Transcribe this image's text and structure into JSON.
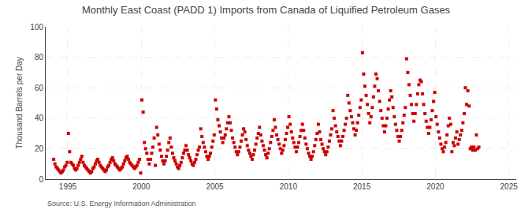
{
  "chart_data": {
    "type": "scatter",
    "title": "Monthly East Coast (PADD 1) Imports from Canada of Liquified Petroleum Gases",
    "ylabel": "Thousand Barrels per Day",
    "annotations": [
      "Source: U.S. Energy Information Administration"
    ],
    "color": "#cc0000",
    "marker": "square",
    "grid": true,
    "xlim": [
      1993.5,
      2025.5
    ],
    "ylim": [
      0,
      100
    ],
    "xticks": [
      1995,
      2000,
      2005,
      2010,
      2015,
      2020,
      2025
    ],
    "yticks": [
      0,
      20,
      40,
      60,
      80,
      100
    ],
    "x": [
      1994.0417,
      1994.125,
      1994.2083,
      1994.2917,
      1994.375,
      1994.4583,
      1994.5417,
      1994.625,
      1994.7083,
      1994.7917,
      1994.875,
      1994.9583,
      1995.0417,
      1995.125,
      1995.2083,
      1995.2917,
      1995.375,
      1995.4583,
      1995.5417,
      1995.625,
      1995.7083,
      1995.7917,
      1995.875,
      1995.9583,
      1996.0417,
      1996.125,
      1996.2083,
      1996.2917,
      1996.375,
      1996.4583,
      1996.5417,
      1996.625,
      1996.7083,
      1996.7917,
      1996.875,
      1996.9583,
      1997.0417,
      1997.125,
      1997.2083,
      1997.2917,
      1997.375,
      1997.4583,
      1997.5417,
      1997.625,
      1997.7083,
      1997.7917,
      1997.875,
      1997.9583,
      1998.0417,
      1998.125,
      1998.2083,
      1998.2917,
      1998.375,
      1998.4583,
      1998.5417,
      1998.625,
      1998.7083,
      1998.7917,
      1998.875,
      1998.9583,
      1999.0417,
      1999.125,
      1999.2083,
      1999.2917,
      1999.375,
      1999.4583,
      1999.5417,
      1999.625,
      1999.7083,
      1999.7917,
      1999.875,
      1999.9583,
      2000.0417,
      2000.125,
      2000.2083,
      2000.2917,
      2000.375,
      2000.4583,
      2000.5417,
      2000.625,
      2000.7083,
      2000.7917,
      2000.875,
      2000.9583,
      2001.0417,
      2001.125,
      2001.2083,
      2001.2917,
      2001.375,
      2001.4583,
      2001.5417,
      2001.625,
      2001.7083,
      2001.7917,
      2001.875,
      2001.9583,
      2002.0417,
      2002.125,
      2002.2083,
      2002.2917,
      2002.375,
      2002.4583,
      2002.5417,
      2002.625,
      2002.7083,
      2002.7917,
      2002.875,
      2002.9583,
      2003.0417,
      2003.125,
      2003.2083,
      2003.2917,
      2003.375,
      2003.4583,
      2003.5417,
      2003.625,
      2003.7083,
      2003.7917,
      2003.875,
      2003.9583,
      2004.0417,
      2004.125,
      2004.2083,
      2004.2917,
      2004.375,
      2004.4583,
      2004.5417,
      2004.625,
      2004.7083,
      2004.7917,
      2004.875,
      2004.9583,
      2005.0417,
      2005.125,
      2005.2083,
      2005.2917,
      2005.375,
      2005.4583,
      2005.5417,
      2005.625,
      2005.7083,
      2005.7917,
      2005.875,
      2005.9583,
      2006.0417,
      2006.125,
      2006.2083,
      2006.2917,
      2006.375,
      2006.4583,
      2006.5417,
      2006.625,
      2006.7083,
      2006.7917,
      2006.875,
      2006.9583,
      2007.0417,
      2007.125,
      2007.2083,
      2007.2917,
      2007.375,
      2007.4583,
      2007.5417,
      2007.625,
      2007.7083,
      2007.7917,
      2007.875,
      2007.9583,
      2008.0417,
      2008.125,
      2008.2083,
      2008.2917,
      2008.375,
      2008.4583,
      2008.5417,
      2008.625,
      2008.7083,
      2008.7917,
      2008.875,
      2008.9583,
      2009.0417,
      2009.125,
      2009.2083,
      2009.2917,
      2009.375,
      2009.4583,
      2009.5417,
      2009.625,
      2009.7083,
      2009.7917,
      2009.875,
      2009.9583,
      2010.0417,
      2010.125,
      2010.2083,
      2010.2917,
      2010.375,
      2010.4583,
      2010.5417,
      2010.625,
      2010.7083,
      2010.7917,
      2010.875,
      2010.9583,
      2011.0417,
      2011.125,
      2011.2083,
      2011.2917,
      2011.375,
      2011.4583,
      2011.5417,
      2011.625,
      2011.7083,
      2011.7917,
      2011.875,
      2011.9583,
      2012.0417,
      2012.125,
      2012.2083,
      2012.2917,
      2012.375,
      2012.4583,
      2012.5417,
      2012.625,
      2012.7083,
      2012.7917,
      2012.875,
      2012.9583,
      2013.0417,
      2013.125,
      2013.2083,
      2013.2917,
      2013.375,
      2013.4583,
      2013.5417,
      2013.625,
      2013.7083,
      2013.7917,
      2013.875,
      2013.9583,
      2014.0417,
      2014.125,
      2014.2083,
      2014.2917,
      2014.375,
      2014.4583,
      2014.5417,
      2014.625,
      2014.7083,
      2014.7917,
      2014.875,
      2014.9583,
      2015.0417,
      2015.125,
      2015.2083,
      2015.2917,
      2015.375,
      2015.4583,
      2015.5417,
      2015.625,
      2015.7083,
      2015.7917,
      2015.875,
      2015.9583,
      2016.0417,
      2016.125,
      2016.2083,
      2016.2917,
      2016.375,
      2016.4583,
      2016.5417,
      2016.625,
      2016.7083,
      2016.7917,
      2016.875,
      2016.9583,
      2017.0417,
      2017.125,
      2017.2083,
      2017.2917,
      2017.375,
      2017.4583,
      2017.5417,
      2017.625,
      2017.7083,
      2017.7917,
      2017.875,
      2017.9583,
      2018.0417,
      2018.125,
      2018.2083,
      2018.2917,
      2018.375,
      2018.4583,
      2018.5417,
      2018.625,
      2018.7083,
      2018.7917,
      2018.875,
      2018.9583,
      2019.0417,
      2019.125,
      2019.2083,
      2019.2917,
      2019.375,
      2019.4583,
      2019.5417,
      2019.625,
      2019.7083,
      2019.7917,
      2019.875,
      2019.9583,
      2020.0417,
      2020.125,
      2020.2083,
      2020.2917,
      2020.375,
      2020.4583,
      2020.5417,
      2020.625,
      2020.7083,
      2020.7917,
      2020.875,
      2020.9583,
      2021.0417,
      2021.125,
      2021.2083,
      2021.2917,
      2021.375,
      2021.4583,
      2021.5417,
      2021.625,
      2021.7083,
      2021.7917,
      2021.875,
      2021.9583,
      2022.0417,
      2022.125,
      2022.2083,
      2022.2917,
      2022.375,
      2022.4583,
      2022.5417,
      2022.625,
      2022.7083,
      2022.7917,
      2022.875,
      2022.9583
    ],
    "values": [
      13,
      10,
      8,
      7,
      6,
      5,
      4,
      5,
      6,
      8,
      9,
      11,
      30,
      18,
      11,
      10,
      9,
      7,
      6,
      7,
      9,
      11,
      13,
      15,
      11,
      9,
      8,
      7,
      6,
      5,
      4,
      5,
      7,
      8,
      10,
      12,
      13,
      11,
      9,
      8,
      7,
      6,
      5,
      6,
      8,
      9,
      11,
      13,
      14,
      12,
      10,
      9,
      8,
      7,
      6,
      7,
      8,
      10,
      12,
      14,
      15,
      13,
      11,
      10,
      9,
      8,
      7,
      8,
      9,
      11,
      13,
      4,
      52,
      44,
      24,
      20,
      17,
      13,
      10,
      13,
      17,
      21,
      27,
      9,
      34,
      29,
      23,
      19,
      15,
      12,
      10,
      12,
      15,
      19,
      24,
      27,
      21,
      17,
      14,
      12,
      10,
      8,
      7,
      9,
      11,
      14,
      17,
      19,
      22,
      19,
      16,
      14,
      12,
      10,
      9,
      11,
      13,
      16,
      19,
      21,
      33,
      28,
      24,
      21,
      18,
      15,
      13,
      15,
      17,
      21,
      25,
      29,
      52,
      46,
      39,
      35,
      31,
      27,
      24,
      27,
      29,
      33,
      37,
      41,
      37,
      32,
      27,
      24,
      21,
      18,
      16,
      18,
      21,
      25,
      29,
      33,
      31,
      26,
      22,
      19,
      17,
      15,
      13,
      16,
      19,
      23,
      27,
      30,
      34,
      29,
      25,
      22,
      19,
      16,
      14,
      17,
      20,
      24,
      28,
      32,
      39,
      34,
      29,
      26,
      23,
      20,
      17,
      19,
      22,
      26,
      30,
      34,
      41,
      36,
      31,
      27,
      24,
      21,
      18,
      21,
      24,
      28,
      32,
      36,
      32,
      27,
      23,
      20,
      17,
      15,
      13,
      15,
      18,
      22,
      26,
      30,
      36,
      31,
      26,
      23,
      20,
      18,
      16,
      18,
      21,
      25,
      29,
      33,
      45,
      40,
      35,
      31,
      28,
      25,
      22,
      25,
      28,
      32,
      36,
      40,
      55,
      50,
      45,
      41,
      37,
      33,
      29,
      32,
      37,
      42,
      47,
      52,
      83,
      69,
      61,
      55,
      49,
      43,
      37,
      41,
      47,
      54,
      61,
      69,
      66,
      58,
      51,
      45,
      40,
      35,
      31,
      35,
      40,
      46,
      52,
      58,
      54,
      47,
      41,
      36,
      32,
      28,
      25,
      28,
      32,
      37,
      42,
      47,
      79,
      70,
      62,
      55,
      49,
      43,
      38,
      43,
      49,
      56,
      62,
      65,
      64,
      56,
      49,
      43,
      38,
      34,
      30,
      34,
      39,
      45,
      51,
      57,
      41,
      36,
      31,
      27,
      23,
      20,
      18,
      21,
      24,
      29,
      35,
      40,
      36,
      18,
      24,
      22,
      27,
      31,
      23,
      26,
      29,
      32,
      37,
      43,
      60,
      49,
      58,
      48,
      20,
      21,
      19,
      21,
      19,
      29,
      20,
      21
    ]
  }
}
